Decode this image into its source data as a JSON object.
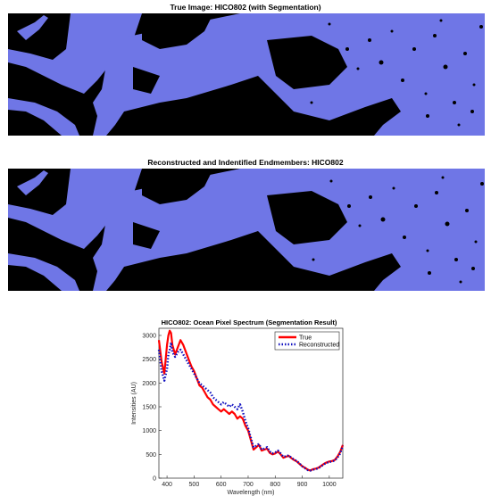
{
  "panels": {
    "top_title": "True Image: HICO802 (with Segmentation)",
    "middle_title": "Reconstructed and Indentified Endmembers: HICO802"
  },
  "colors": {
    "water": "#6f76e6",
    "land": "#000000",
    "true_line": "#ff0000",
    "reconstructed_line": "#1010c0"
  },
  "chart_data": {
    "type": "line",
    "title": "HICO802: Ocean Pixel Spectrum (Segmentation Result)",
    "xlabel": "Wavelength (nm)",
    "ylabel": "Intensities (AU)",
    "xlim": [
      370,
      1050
    ],
    "ylim": [
      0,
      3150
    ],
    "xticks": [
      400,
      500,
      600,
      700,
      800,
      900,
      1000
    ],
    "yticks": [
      0,
      500,
      1000,
      1500,
      2000,
      2500,
      3000
    ],
    "legend_position": "top-right",
    "series": [
      {
        "name": "True",
        "style": "solid",
        "x": [
          370,
          380,
          390,
          400,
          405,
          410,
          415,
          420,
          430,
          440,
          450,
          460,
          470,
          480,
          490,
          500,
          510,
          520,
          530,
          540,
          550,
          560,
          570,
          580,
          590,
          600,
          610,
          620,
          630,
          640,
          650,
          660,
          670,
          680,
          690,
          700,
          710,
          720,
          730,
          740,
          750,
          760,
          770,
          780,
          790,
          800,
          810,
          820,
          830,
          840,
          850,
          860,
          870,
          880,
          890,
          900,
          910,
          920,
          930,
          940,
          950,
          960,
          970,
          980,
          990,
          1000,
          1010,
          1020,
          1030,
          1040,
          1050
        ],
        "y": [
          2900,
          2450,
          2200,
          2800,
          3000,
          3100,
          3050,
          2800,
          2600,
          2750,
          2900,
          2800,
          2650,
          2500,
          2350,
          2250,
          2100,
          1950,
          1900,
          1800,
          1700,
          1650,
          1550,
          1500,
          1450,
          1400,
          1450,
          1400,
          1350,
          1400,
          1350,
          1250,
          1300,
          1250,
          1100,
          1000,
          800,
          600,
          650,
          700,
          580,
          600,
          620,
          530,
          500,
          520,
          560,
          500,
          430,
          450,
          470,
          420,
          380,
          350,
          300,
          250,
          220,
          180,
          160,
          190,
          200,
          220,
          260,
          300,
          330,
          350,
          360,
          380,
          450,
          550,
          700
        ]
      },
      {
        "name": "Reconstructed",
        "style": "dotted",
        "x": [
          370,
          380,
          390,
          400,
          405,
          410,
          415,
          420,
          430,
          440,
          450,
          460,
          470,
          480,
          490,
          500,
          510,
          520,
          530,
          540,
          550,
          560,
          570,
          580,
          590,
          600,
          610,
          620,
          630,
          640,
          650,
          660,
          670,
          680,
          690,
          700,
          710,
          720,
          730,
          740,
          750,
          760,
          770,
          780,
          790,
          800,
          810,
          820,
          830,
          840,
          850,
          860,
          870,
          880,
          890,
          900,
          910,
          920,
          930,
          940,
          950,
          960,
          970,
          980,
          990,
          1000,
          1010,
          1020,
          1030,
          1040,
          1050
        ],
        "y": [
          2700,
          2250,
          2050,
          2300,
          2600,
          2700,
          2850,
          2650,
          2550,
          2650,
          2700,
          2600,
          2500,
          2400,
          2300,
          2200,
          2100,
          2000,
          1950,
          1900,
          1850,
          1800,
          1700,
          1650,
          1600,
          1550,
          1600,
          1550,
          1500,
          1550,
          1500,
          1450,
          1550,
          1400,
          1200,
          1050,
          850,
          650,
          680,
          720,
          600,
          620,
          650,
          560,
          520,
          540,
          580,
          520,
          450,
          460,
          480,
          430,
          390,
          360,
          310,
          250,
          210,
          170,
          160,
          180,
          190,
          210,
          250,
          290,
          320,
          340,
          350,
          370,
          430,
          520,
          680
        ]
      }
    ]
  }
}
